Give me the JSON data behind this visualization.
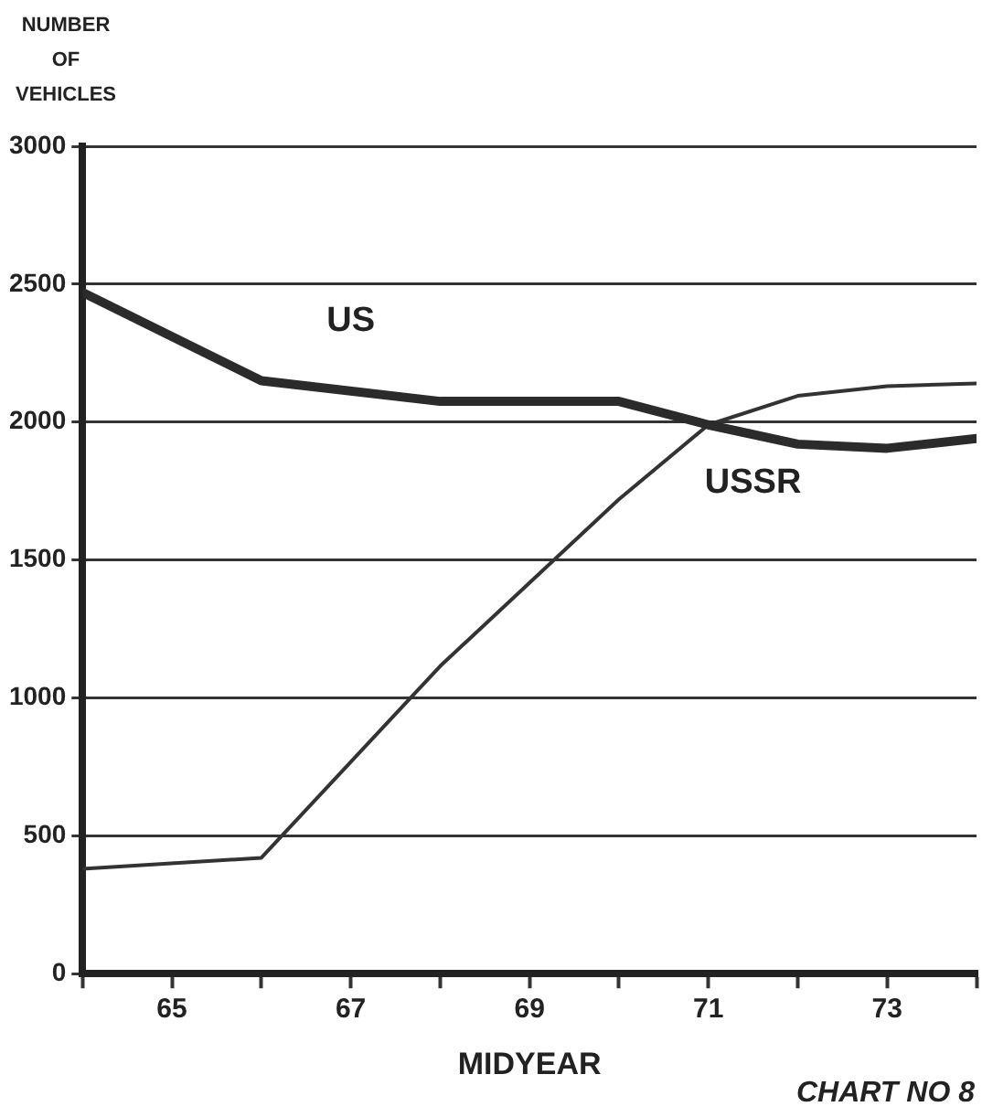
{
  "chart_data": {
    "type": "line",
    "ylabel": "NUMBER OF VEHICLES",
    "xlabel": "MIDYEAR",
    "annotations": [
      "CHART NO 8"
    ],
    "xlim": [
      64,
      74
    ],
    "xticks": [
      {
        "value": 64,
        "label": null
      },
      65,
      {
        "value": 66,
        "label": null
      },
      67,
      {
        "value": 68,
        "label": null
      },
      69,
      {
        "value": 70,
        "label": null
      },
      71,
      {
        "value": 72,
        "label": null
      },
      73,
      {
        "value": 74,
        "label": null
      }
    ],
    "ylim": [
      0,
      3000
    ],
    "yticks": [
      0,
      500,
      1000,
      1500,
      2000,
      2500,
      3000
    ],
    "grid": "y",
    "legend": false,
    "marker": "none",
    "line_style": "solid",
    "series": [
      {
        "name": "US",
        "color": "#2b2b2b",
        "x": [
          64,
          66,
          68,
          70,
          71,
          72,
          73,
          74
        ],
        "values": [
          2470,
          2150,
          2075,
          2075,
          1990,
          1920,
          1905,
          1940
        ]
      },
      {
        "name": "USSR",
        "color": "#333333",
        "x": [
          64,
          66,
          68,
          70,
          71,
          72,
          73,
          74
        ],
        "values": [
          380,
          420,
          1115,
          1720,
          1990,
          2095,
          2130,
          2140
        ]
      }
    ]
  }
}
